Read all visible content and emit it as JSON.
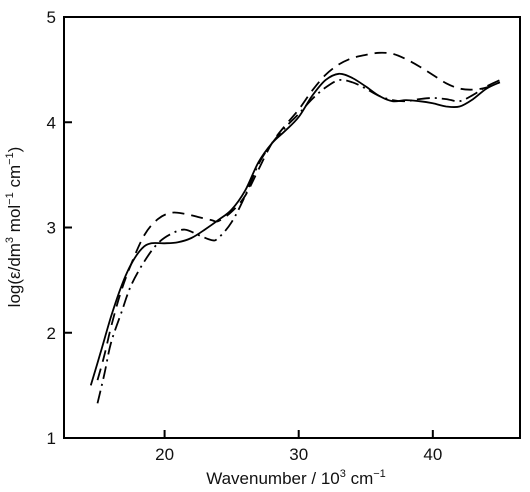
{
  "chart_data": {
    "type": "line",
    "xlabel": {
      "pre": "Wavenumber / 10",
      "sup": "3",
      "post": " cm",
      "sup2": "−1"
    },
    "ylabel": {
      "a": "log(ε/dm",
      "a_sup": "3",
      "b": " mol",
      "b_sup": "−1",
      "c": " cm",
      "c_sup": "−1",
      "d": ")"
    },
    "xlim": [
      12.5,
      46.5
    ],
    "ylim": [
      1,
      5
    ],
    "x_ticks": [
      20,
      30,
      40
    ],
    "x_tick_labels": [
      "20",
      "30",
      "40"
    ],
    "y_ticks": [
      1,
      2,
      3,
      4,
      5
    ],
    "y_tick_labels": [
      "1",
      "2",
      "3",
      "4",
      "5"
    ],
    "grid": false,
    "legend": "none",
    "series": [
      {
        "style": "solid",
        "points": [
          [
            14.5,
            1.5
          ],
          [
            15.2,
            1.8
          ],
          [
            16.0,
            2.15
          ],
          [
            16.8,
            2.45
          ],
          [
            17.5,
            2.65
          ],
          [
            18.3,
            2.8
          ],
          [
            19.0,
            2.85
          ],
          [
            20.0,
            2.85
          ],
          [
            21.0,
            2.86
          ],
          [
            22.0,
            2.9
          ],
          [
            23.0,
            2.98
          ],
          [
            24.0,
            3.07
          ],
          [
            25.0,
            3.17
          ],
          [
            26.0,
            3.35
          ],
          [
            27.0,
            3.62
          ],
          [
            28.0,
            3.8
          ],
          [
            29.0,
            3.92
          ],
          [
            30.0,
            4.05
          ],
          [
            31.0,
            4.25
          ],
          [
            32.0,
            4.4
          ],
          [
            33.0,
            4.46
          ],
          [
            34.0,
            4.42
          ],
          [
            35.0,
            4.34
          ],
          [
            36.0,
            4.25
          ],
          [
            37.0,
            4.2
          ],
          [
            38.0,
            4.21
          ],
          [
            39.0,
            4.2
          ],
          [
            40.0,
            4.18
          ],
          [
            41.0,
            4.15
          ],
          [
            42.0,
            4.15
          ],
          [
            43.0,
            4.22
          ],
          [
            44.0,
            4.32
          ],
          [
            45.0,
            4.38
          ]
        ]
      },
      {
        "style": "dashed",
        "points": [
          [
            15.0,
            1.55
          ],
          [
            15.5,
            1.78
          ],
          [
            16.0,
            2.05
          ],
          [
            16.7,
            2.37
          ],
          [
            17.5,
            2.65
          ],
          [
            18.5,
            2.93
          ],
          [
            19.5,
            3.08
          ],
          [
            20.5,
            3.14
          ],
          [
            21.5,
            3.13
          ],
          [
            22.5,
            3.1
          ],
          [
            23.5,
            3.07
          ],
          [
            24.0,
            3.06
          ],
          [
            25.0,
            3.15
          ],
          [
            26.0,
            3.3
          ],
          [
            27.0,
            3.55
          ],
          [
            28.0,
            3.8
          ],
          [
            29.0,
            3.97
          ],
          [
            30.0,
            4.12
          ],
          [
            31.0,
            4.3
          ],
          [
            32.0,
            4.45
          ],
          [
            33.0,
            4.55
          ],
          [
            34.0,
            4.61
          ],
          [
            35.0,
            4.64
          ],
          [
            36.0,
            4.66
          ],
          [
            37.0,
            4.65
          ],
          [
            38.0,
            4.6
          ],
          [
            39.0,
            4.53
          ],
          [
            40.0,
            4.45
          ],
          [
            41.0,
            4.37
          ],
          [
            42.0,
            4.32
          ],
          [
            43.0,
            4.31
          ],
          [
            44.0,
            4.33
          ],
          [
            45.0,
            4.38
          ]
        ]
      },
      {
        "style": "dashdot",
        "points": [
          [
            15.0,
            1.33
          ],
          [
            15.5,
            1.6
          ],
          [
            16.0,
            1.9
          ],
          [
            16.8,
            2.2
          ],
          [
            17.5,
            2.45
          ],
          [
            18.5,
            2.68
          ],
          [
            19.5,
            2.85
          ],
          [
            20.5,
            2.94
          ],
          [
            21.5,
            2.98
          ],
          [
            22.5,
            2.93
          ],
          [
            23.5,
            2.88
          ],
          [
            24.0,
            2.9
          ],
          [
            25.0,
            3.05
          ],
          [
            26.0,
            3.3
          ],
          [
            27.0,
            3.6
          ],
          [
            28.0,
            3.8
          ],
          [
            29.0,
            3.95
          ],
          [
            30.0,
            4.08
          ],
          [
            31.0,
            4.22
          ],
          [
            32.0,
            4.33
          ],
          [
            33.0,
            4.4
          ],
          [
            34.0,
            4.38
          ],
          [
            35.0,
            4.32
          ],
          [
            36.0,
            4.25
          ],
          [
            37.0,
            4.21
          ],
          [
            38.0,
            4.2
          ],
          [
            39.0,
            4.22
          ],
          [
            40.0,
            4.23
          ],
          [
            41.0,
            4.22
          ],
          [
            42.0,
            4.2
          ],
          [
            43.0,
            4.26
          ],
          [
            44.0,
            4.34
          ],
          [
            45.0,
            4.4
          ]
        ]
      }
    ]
  }
}
